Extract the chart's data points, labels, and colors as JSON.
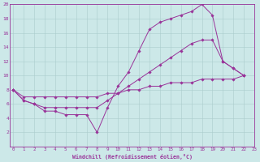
{
  "xlabel": "Windchill (Refroidissement éolien,°C)",
  "background_color": "#cce8e8",
  "grid_color": "#aacccc",
  "line_color": "#993399",
  "axis_color": "#993399",
  "xmin": 0,
  "xmax": 23,
  "ymin": 0,
  "ymax": 20,
  "yticks": [
    2,
    4,
    6,
    8,
    10,
    12,
    14,
    16,
    18,
    20
  ],
  "xticks": [
    0,
    1,
    2,
    3,
    4,
    5,
    6,
    7,
    8,
    9,
    10,
    11,
    12,
    13,
    14,
    15,
    16,
    17,
    18,
    19,
    20,
    21,
    22,
    23
  ],
  "series": [
    {
      "x": [
        0,
        1,
        2,
        3,
        4,
        5,
        6,
        7,
        8,
        9,
        10,
        11,
        12,
        13,
        14,
        15,
        16,
        17,
        18,
        19,
        20,
        21,
        22
      ],
      "y": [
        8,
        6.5,
        6,
        5,
        5,
        4.5,
        4.5,
        4.5,
        2,
        5.5,
        8.5,
        10.5,
        13.5,
        16.5,
        17.5,
        18,
        18.5,
        19,
        20,
        18.5,
        12,
        11,
        10
      ]
    },
    {
      "x": [
        0,
        1,
        2,
        3,
        4,
        5,
        6,
        7,
        8,
        9,
        10,
        11,
        12,
        13,
        14,
        15,
        16,
        17,
        18,
        19,
        20,
        21,
        22
      ],
      "y": [
        8,
        6.5,
        6,
        5.5,
        5.5,
        5.5,
        5.5,
        5.5,
        5.5,
        6.5,
        7.5,
        8.5,
        9.5,
        10.5,
        11.5,
        12.5,
        13.5,
        14.5,
        15.0,
        15.0,
        12,
        11,
        10
      ]
    },
    {
      "x": [
        0,
        1,
        2,
        3,
        4,
        5,
        6,
        7,
        8,
        9,
        10,
        11,
        12,
        13,
        14,
        15,
        16,
        17,
        18,
        19,
        20,
        21,
        22
      ],
      "y": [
        8,
        7,
        7,
        7,
        7,
        7,
        7,
        7,
        7,
        7.5,
        7.5,
        8,
        8,
        8.5,
        8.5,
        9,
        9,
        9,
        9.5,
        9.5,
        9.5,
        9.5,
        10
      ]
    }
  ]
}
